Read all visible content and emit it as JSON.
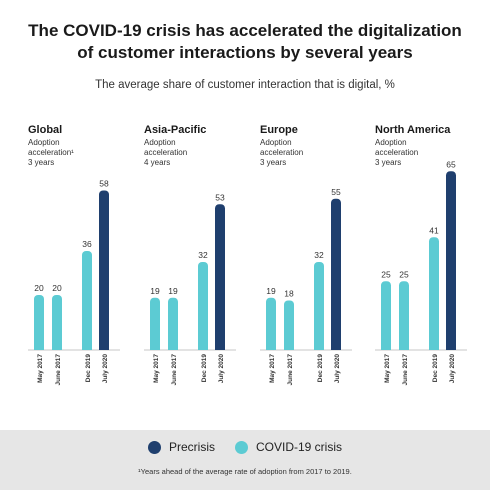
{
  "title_line1": "The COVID-19 crisis has accelerated the digitalization",
  "title_line2": "of customer interactions by several years",
  "subtitle": "The average share of customer interaction that is digital, %",
  "legend": [
    {
      "label": "Precrisis",
      "color": "#1f3f6e"
    },
    {
      "label": "COVID-19 crisis",
      "color": "#5ccbd3"
    }
  ],
  "footnote": "¹Years ahead of the average rate of adoption from 2017 to 2019.",
  "chart_data": [
    {
      "type": "bar",
      "region": "Global",
      "adoption_label": "Adoption acceleration¹",
      "adoption_years": "3 years",
      "categories": [
        "May 2017",
        "June 2017",
        "Dec 2019",
        "July 2020"
      ],
      "values": [
        20,
        20,
        36,
        58
      ],
      "colors": [
        "#5ccbd3",
        "#5ccbd3",
        "#5ccbd3",
        "#1f3f6e"
      ]
    },
    {
      "type": "bar",
      "region": "Asia-Pacific",
      "adoption_label": "Adoption acceleration",
      "adoption_years": "4 years",
      "categories": [
        "May 2017",
        "June 2017",
        "Dec 2019",
        "July 2020"
      ],
      "values": [
        19,
        19,
        32,
        53
      ],
      "colors": [
        "#5ccbd3",
        "#5ccbd3",
        "#5ccbd3",
        "#1f3f6e"
      ]
    },
    {
      "type": "bar",
      "region": "Europe",
      "adoption_label": "Adoption acceleration",
      "adoption_years": "3 years",
      "categories": [
        "May 2017",
        "June 2017",
        "Dec 2019",
        "July 2020"
      ],
      "values": [
        19,
        18,
        32,
        55
      ],
      "colors": [
        "#5ccbd3",
        "#5ccbd3",
        "#5ccbd3",
        "#1f3f6e"
      ]
    },
    {
      "type": "bar",
      "region": "North America",
      "adoption_label": "Adoption acceleration",
      "adoption_years": "3 years",
      "categories": [
        "May 2017",
        "June 2017",
        "Dec 2019",
        "July 2020"
      ],
      "values": [
        25,
        25,
        41,
        65
      ],
      "colors": [
        "#5ccbd3",
        "#5ccbd3",
        "#5ccbd3",
        "#1f3f6e"
      ]
    }
  ]
}
